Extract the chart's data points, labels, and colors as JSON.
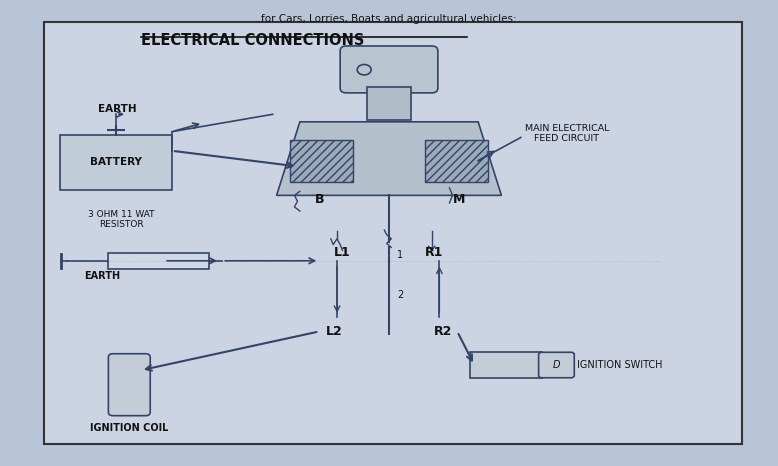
{
  "title": "ELECTRICAL CONNECTIONS",
  "bg_color": "#b8c4d8",
  "panel_bg": "#ccd4e4",
  "border_color": "#333333",
  "line_color": "#334466",
  "text_color": "#111111",
  "top_text": "for Cars, Lorries, Boats and agricultural vehicles:",
  "labels": {
    "earth_top": "EARTH",
    "battery": "BATTERY",
    "main_feed": "MAIN ELECTRICAL\nFEED CIRCUIT",
    "B": "B",
    "M": "M",
    "resistor_label": "3 OHM 11 WAT\nRESISTOR",
    "earth_bottom": "EARTH",
    "L1": "L1",
    "R1": "R1",
    "L2": "L2",
    "R2": "R2",
    "num1": "1",
    "num2": "2",
    "ignition_coil": "IGNITION COIL",
    "ignition_switch": "IGNITION SWITCH"
  }
}
